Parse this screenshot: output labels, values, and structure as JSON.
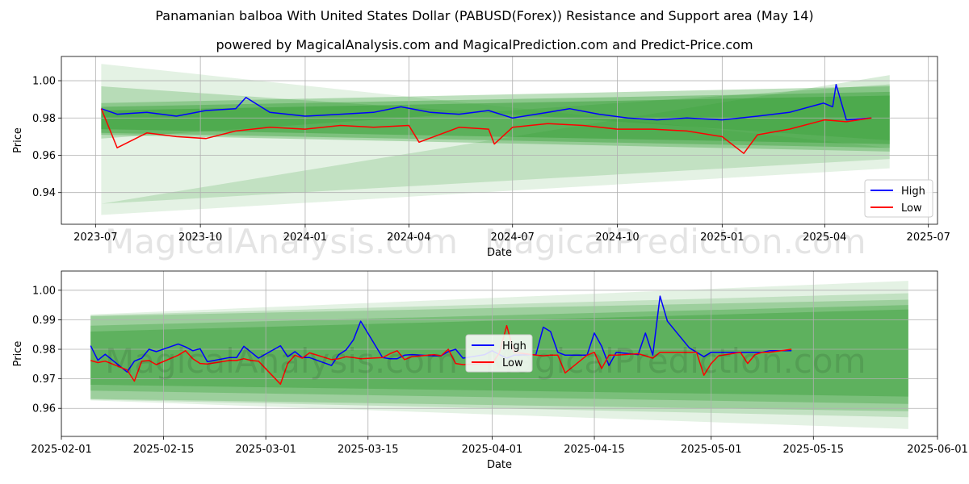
{
  "title": "Panamanian balboa With United States Dollar (PABUSD(Forex)) Resistance and Support area (May 14)",
  "subtitle": "powered by MagicalAnalysis.com and MagicalPrediction.com and Predict-Price.com",
  "watermark_left": "MagicalAnalysis.com",
  "watermark_right": "MagicalPrediction.com",
  "colors": {
    "high": "#0000ff",
    "low": "#ff0000",
    "band": "#2e9b2e",
    "grid": "#b0b0b0"
  },
  "chart_data": [
    {
      "type": "line",
      "title": "",
      "xlabel": "Date",
      "ylabel": "Price",
      "grid": true,
      "legend": "bottom-right",
      "legend_entries": [
        "High",
        "Low"
      ],
      "xlim": [
        "2023-06-01",
        "2025-07-09"
      ],
      "ylim": [
        0.923,
        1.013
      ],
      "x_ticks": [
        "2023-07-01",
        "2023-10-01",
        "2024-01-01",
        "2024-04-01",
        "2024-07-01",
        "2024-10-01",
        "2025-01-01",
        "2025-04-01",
        "2025-07-01"
      ],
      "x_tick_labels": [
        "2023-07",
        "2023-10",
        "2024-01",
        "2024-04",
        "2024-07",
        "2024-10",
        "2025-01",
        "2025-04",
        "2025-07"
      ],
      "y_ticks": [
        0.94,
        0.96,
        0.98,
        1.0
      ],
      "y_tick_labels": [
        "0.94",
        "0.96",
        "0.98",
        "1.00"
      ],
      "data_range": [
        "2023-07-06",
        "2025-05-12"
      ],
      "bands": [
        {
          "x0": "2023-07-06",
          "x1": "2025-05-28",
          "top": [
            1.009,
            0.964
          ],
          "bottom": [
            0.928,
            0.953
          ]
        },
        {
          "x0": "2023-07-06",
          "x1": "2025-05-28",
          "top": [
            0.934,
            1.003
          ],
          "bottom": [
            0.934,
            0.958
          ]
        },
        {
          "x0": "2023-07-06",
          "x1": "2025-05-28",
          "top": [
            0.997,
            0.968
          ],
          "bottom": [
            0.969,
            0.998
          ]
        },
        {
          "x0": "2023-07-06",
          "x1": "2025-05-28",
          "top": [
            0.988,
            0.997
          ],
          "bottom": [
            0.971,
            0.962
          ]
        },
        {
          "x0": "2023-07-06",
          "x1": "2025-05-28",
          "top": [
            0.986,
            0.994
          ],
          "bottom": [
            0.972,
            0.964
          ]
        },
        {
          "x0": "2023-07-06",
          "x1": "2025-05-28",
          "top": [
            0.984,
            0.992
          ],
          "bottom": [
            0.974,
            0.966
          ]
        }
      ],
      "series": [
        {
          "name": "High",
          "x": [
            "2023-07-06",
            "2023-07-20",
            "2023-08-15",
            "2023-09-10",
            "2023-10-06",
            "2023-11-01",
            "2023-11-10",
            "2023-12-01",
            "2024-01-01",
            "2024-02-01",
            "2024-03-01",
            "2024-03-25",
            "2024-04-20",
            "2024-05-15",
            "2024-06-10",
            "2024-07-01",
            "2024-08-01",
            "2024-08-20",
            "2024-09-15",
            "2024-10-10",
            "2024-11-05",
            "2024-12-01",
            "2025-01-01",
            "2025-02-01",
            "2025-03-01",
            "2025-03-31",
            "2025-04-08",
            "2025-04-11",
            "2025-04-20",
            "2025-05-12"
          ],
          "values": [
            0.985,
            0.982,
            0.983,
            0.981,
            0.984,
            0.985,
            0.991,
            0.983,
            0.981,
            0.982,
            0.983,
            0.986,
            0.983,
            0.982,
            0.984,
            0.98,
            0.983,
            0.985,
            0.982,
            0.98,
            0.979,
            0.98,
            0.979,
            0.981,
            0.983,
            0.988,
            0.986,
            0.998,
            0.979,
            0.98
          ]
        },
        {
          "name": "Low",
          "x": [
            "2023-07-06",
            "2023-07-20",
            "2023-08-15",
            "2023-09-10",
            "2023-10-06",
            "2023-11-01",
            "2023-12-01",
            "2024-01-01",
            "2024-02-01",
            "2024-03-01",
            "2024-04-01",
            "2024-04-10",
            "2024-05-15",
            "2024-06-10",
            "2024-06-15",
            "2024-07-01",
            "2024-08-01",
            "2024-09-01",
            "2024-10-01",
            "2024-11-01",
            "2024-12-01",
            "2025-01-01",
            "2025-01-20",
            "2025-02-01",
            "2025-03-01",
            "2025-04-01",
            "2025-04-20",
            "2025-05-12"
          ],
          "values": [
            0.985,
            0.964,
            0.972,
            0.97,
            0.969,
            0.973,
            0.975,
            0.974,
            0.976,
            0.975,
            0.976,
            0.967,
            0.975,
            0.974,
            0.966,
            0.975,
            0.977,
            0.976,
            0.974,
            0.974,
            0.973,
            0.97,
            0.961,
            0.971,
            0.974,
            0.979,
            0.978,
            0.98
          ]
        }
      ]
    },
    {
      "type": "line",
      "title": "",
      "xlabel": "Date",
      "ylabel": "Price",
      "grid": true,
      "legend": "center",
      "legend_entries": [
        "High",
        "Low"
      ],
      "xlim": [
        "2025-02-01",
        "2025-06-01"
      ],
      "ylim": [
        0.9505,
        1.0065
      ],
      "x_ticks": [
        "2025-02-01",
        "2025-02-15",
        "2025-03-01",
        "2025-03-15",
        "2025-04-01",
        "2025-04-15",
        "2025-05-01",
        "2025-05-15",
        "2025-06-01"
      ],
      "x_tick_labels": [
        "2025-02-01",
        "2025-02-15",
        "2025-03-01",
        "2025-03-15",
        "2025-04-01",
        "2025-04-15",
        "2025-05-01",
        "2025-05-15",
        "2025-06-01"
      ],
      "y_ticks": [
        0.96,
        0.97,
        0.98,
        0.99,
        1.0
      ],
      "y_tick_labels": [
        "0.96",
        "0.97",
        "0.98",
        "0.99",
        "1.00"
      ],
      "bands": [
        {
          "x0": "2025-02-05",
          "x1": "2025-05-28",
          "top": [
            0.9918,
            1.0032
          ],
          "bottom": [
            0.9627,
            0.953
          ]
        },
        {
          "x0": "2025-02-05",
          "x1": "2025-05-28",
          "top": [
            0.9915,
            0.999
          ],
          "bottom": [
            0.963,
            0.957
          ]
        },
        {
          "x0": "2025-02-05",
          "x1": "2025-05-28",
          "top": [
            0.9912,
            0.9968
          ],
          "bottom": [
            0.9632,
            0.959
          ]
        },
        {
          "x0": "2025-02-05",
          "x1": "2025-05-28",
          "top": [
            0.988,
            0.995
          ],
          "bottom": [
            0.966,
            0.9615
          ]
        },
        {
          "x0": "2025-02-05",
          "x1": "2025-05-28",
          "top": [
            0.986,
            0.9935
          ],
          "bottom": [
            0.968,
            0.964
          ]
        }
      ],
      "series": [
        {
          "name": "High",
          "x": [
            "2025-02-05",
            "2025-02-06",
            "2025-02-07",
            "2025-02-10",
            "2025-02-11",
            "2025-02-12",
            "2025-02-13",
            "2025-02-14",
            "2025-02-17",
            "2025-02-18",
            "2025-02-19",
            "2025-02-20",
            "2025-02-21",
            "2025-02-24",
            "2025-02-25",
            "2025-02-26",
            "2025-02-27",
            "2025-02-28",
            "2025-03-03",
            "2025-03-04",
            "2025-03-05",
            "2025-03-06",
            "2025-03-07",
            "2025-03-10",
            "2025-03-11",
            "2025-03-12",
            "2025-03-13",
            "2025-03-14",
            "2025-03-17",
            "2025-03-18",
            "2025-03-19",
            "2025-03-20",
            "2025-03-21",
            "2025-03-24",
            "2025-03-25",
            "2025-03-26",
            "2025-03-27",
            "2025-03-28",
            "2025-03-31",
            "2025-04-01",
            "2025-04-02",
            "2025-04-03",
            "2025-04-04",
            "2025-04-07",
            "2025-04-08",
            "2025-04-09",
            "2025-04-10",
            "2025-04-11",
            "2025-04-14",
            "2025-04-15",
            "2025-04-16",
            "2025-04-17",
            "2025-04-18",
            "2025-04-21",
            "2025-04-22",
            "2025-04-23",
            "2025-04-24",
            "2025-04-25",
            "2025-04-28",
            "2025-04-29",
            "2025-04-30",
            "2025-05-01",
            "2025-05-02",
            "2025-05-05",
            "2025-05-06",
            "2025-05-07",
            "2025-05-08",
            "2025-05-09",
            "2025-05-12"
          ],
          "values": [
            0.9812,
            0.9763,
            0.9783,
            0.9723,
            0.976,
            0.977,
            0.98,
            0.9792,
            0.9818,
            0.9808,
            0.9795,
            0.9802,
            0.9758,
            0.9772,
            0.9772,
            0.981,
            0.979,
            0.977,
            0.9812,
            0.9775,
            0.9792,
            0.9772,
            0.9772,
            0.9745,
            0.9782,
            0.9798,
            0.9832,
            0.9895,
            0.9772,
            0.9768,
            0.9768,
            0.978,
            0.9782,
            0.9778,
            0.9778,
            0.9792,
            0.98,
            0.977,
            0.9782,
            0.9795,
            0.9782,
            0.977,
            0.978,
            0.9782,
            0.9875,
            0.986,
            0.979,
            0.978,
            0.978,
            0.9855,
            0.981,
            0.9745,
            0.979,
            0.9782,
            0.9855,
            0.978,
            0.998,
            0.9895,
            0.9805,
            0.979,
            0.9775,
            0.979,
            0.979,
            0.979,
            0.979,
            0.979,
            0.979,
            0.9795,
            0.9795
          ]
        },
        {
          "name": "Low",
          "x": [
            "2025-02-05",
            "2025-02-06",
            "2025-02-07",
            "2025-02-10",
            "2025-02-11",
            "2025-02-12",
            "2025-02-13",
            "2025-02-14",
            "2025-02-17",
            "2025-02-18",
            "2025-02-19",
            "2025-02-20",
            "2025-02-21",
            "2025-02-24",
            "2025-02-25",
            "2025-02-26",
            "2025-02-27",
            "2025-02-28",
            "2025-03-03",
            "2025-03-04",
            "2025-03-05",
            "2025-03-06",
            "2025-03-07",
            "2025-03-10",
            "2025-03-11",
            "2025-03-12",
            "2025-03-13",
            "2025-03-14",
            "2025-03-17",
            "2025-03-18",
            "2025-03-19",
            "2025-03-20",
            "2025-03-21",
            "2025-03-24",
            "2025-03-25",
            "2025-03-26",
            "2025-03-27",
            "2025-03-28",
            "2025-03-31",
            "2025-04-01",
            "2025-04-02",
            "2025-04-03",
            "2025-04-04",
            "2025-04-07",
            "2025-04-08",
            "2025-04-09",
            "2025-04-10",
            "2025-04-11",
            "2025-04-14",
            "2025-04-15",
            "2025-04-16",
            "2025-04-17",
            "2025-04-18",
            "2025-04-21",
            "2025-04-22",
            "2025-04-23",
            "2025-04-24",
            "2025-04-25",
            "2025-04-28",
            "2025-04-29",
            "2025-04-30",
            "2025-05-01",
            "2025-05-02",
            "2025-05-05",
            "2025-05-06",
            "2025-05-07",
            "2025-05-08",
            "2025-05-09",
            "2025-05-12"
          ],
          "values": [
            0.9762,
            0.9755,
            0.976,
            0.973,
            0.9692,
            0.976,
            0.9762,
            0.9748,
            0.978,
            0.9795,
            0.9768,
            0.9752,
            0.975,
            0.9762,
            0.9762,
            0.9768,
            0.9762,
            0.976,
            0.9682,
            0.9752,
            0.978,
            0.977,
            0.9788,
            0.9765,
            0.9768,
            0.9775,
            0.9772,
            0.9768,
            0.9772,
            0.9785,
            0.9795,
            0.9765,
            0.9775,
            0.9782,
            0.9778,
            0.98,
            0.9752,
            0.9748,
            0.9752,
            0.9752,
            0.9788,
            0.988,
            0.979,
            0.978,
            0.9778,
            0.978,
            0.978,
            0.972,
            0.978,
            0.979,
            0.9735,
            0.978,
            0.978,
            0.9785,
            0.9778,
            0.977,
            0.979,
            0.979,
            0.979,
            0.979,
            0.9712,
            0.9752,
            0.9778,
            0.979,
            0.9752,
            0.9782,
            0.979,
            0.979,
            0.98
          ]
        }
      ]
    }
  ]
}
